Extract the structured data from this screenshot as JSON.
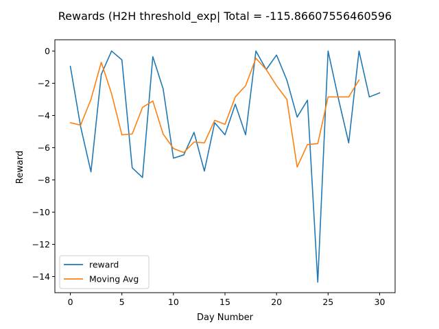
{
  "chart_data": {
    "type": "line",
    "title": "Rewards (H2H threshold_exp| Total = -115.86607556460596",
    "xlabel": "Day Number",
    "ylabel": "Reward",
    "xlim": [
      -1.5,
      31.5
    ],
    "ylim": [
      -15.0,
      0.7
    ],
    "xticks": [
      0,
      5,
      10,
      15,
      20,
      25,
      30
    ],
    "yticks": [
      0,
      -2,
      -4,
      -6,
      -8,
      -10,
      -12,
      -14
    ],
    "grid": false,
    "legend_position": "lower-left",
    "series": [
      {
        "name": "reward",
        "color": "#1f77b4",
        "x": [
          0,
          1,
          2,
          3,
          4,
          5,
          6,
          7,
          8,
          9,
          10,
          11,
          12,
          13,
          14,
          15,
          16,
          17,
          18,
          19,
          20,
          21,
          22,
          23,
          24,
          25,
          26,
          27,
          28,
          29,
          30
        ],
        "values": [
          -0.95,
          -4.7,
          -7.5,
          -1.45,
          0.0,
          -0.55,
          -7.25,
          -7.85,
          -0.35,
          -2.35,
          -6.65,
          -6.45,
          -5.05,
          -7.45,
          -4.45,
          -5.2,
          -3.3,
          -5.2,
          0.0,
          -1.15,
          -0.25,
          -1.8,
          -4.1,
          -3.05,
          -14.35,
          0.0,
          -2.95,
          -5.7,
          0.0,
          -2.85,
          -2.6
        ]
      },
      {
        "name": "Moving Avg",
        "color": "#ff7f0e",
        "x": [
          0,
          1,
          2,
          3,
          4,
          5,
          6,
          7,
          8,
          9,
          10,
          11,
          12,
          13,
          14,
          15,
          16,
          17,
          18,
          19,
          20,
          21,
          22,
          23,
          24,
          25,
          26,
          27,
          28
        ],
        "values": [
          -4.45,
          -4.6,
          -3.0,
          -0.7,
          -2.65,
          -5.2,
          -5.15,
          -3.5,
          -3.1,
          -5.15,
          -6.05,
          -6.3,
          -5.65,
          -5.7,
          -4.3,
          -4.55,
          -2.85,
          -2.15,
          -0.45,
          -1.15,
          -2.15,
          -3.0,
          -7.2,
          -5.8,
          -5.75,
          -2.85,
          -2.85,
          -2.85,
          -1.8
        ]
      }
    ]
  }
}
